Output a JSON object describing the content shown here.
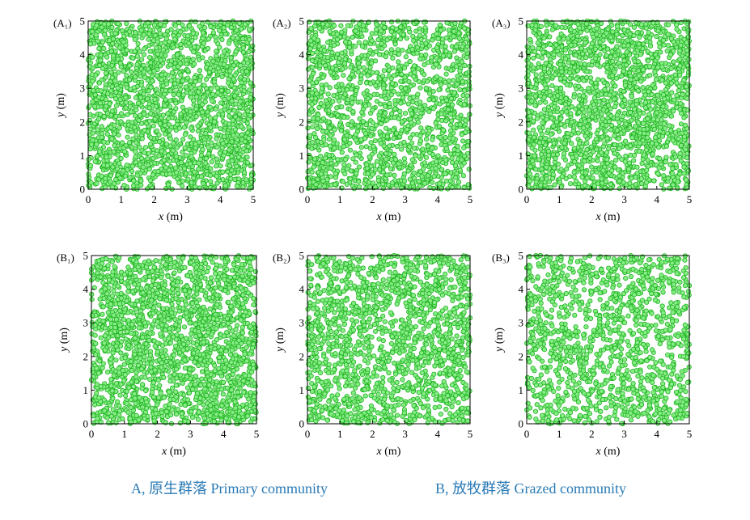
{
  "colors": {
    "point_fill": "#86ec86",
    "point_stroke": "#1fb31f",
    "frame": "#000000",
    "caption": "#2a7ab5"
  },
  "captions": {
    "a": "A, 原生群落 Primary community",
    "b": "B, 放牧群落 Grazed community"
  },
  "chart_data": [
    {
      "type": "scatter",
      "panel": "(A₁)",
      "xlabel_var": "x",
      "xlabel_unit": " (m)",
      "ylabel_var": "y",
      "ylabel_unit": " (m)",
      "xlim": [
        0,
        5
      ],
      "ylim": [
        0,
        5
      ],
      "xticks": [
        0,
        1,
        2,
        3,
        4,
        5
      ],
      "yticks": [
        0,
        1,
        2,
        3,
        4,
        5
      ],
      "grid": false,
      "point_count": 2100,
      "seed": 11,
      "x": [],
      "y": []
    },
    {
      "type": "scatter",
      "panel": "(A₂)",
      "xlabel_var": "x",
      "xlabel_unit": " (m)",
      "ylabel_var": "y",
      "ylabel_unit": " (m)",
      "xlim": [
        0,
        5
      ],
      "ylim": [
        0,
        5
      ],
      "xticks": [
        0,
        1,
        2,
        3,
        4,
        5
      ],
      "yticks": [
        0,
        1,
        2,
        3,
        4,
        5
      ],
      "grid": false,
      "point_count": 1700,
      "seed": 23,
      "x": [],
      "y": []
    },
    {
      "type": "scatter",
      "panel": "(A₃)",
      "xlabel_var": "x",
      "xlabel_unit": " (m)",
      "ylabel_var": "y",
      "ylabel_unit": " (m)",
      "xlim": [
        0,
        5
      ],
      "ylim": [
        0,
        5
      ],
      "xticks": [
        0,
        1,
        2,
        3,
        4,
        5
      ],
      "yticks": [
        0,
        1,
        2,
        3,
        4,
        5
      ],
      "grid": false,
      "point_count": 2000,
      "seed": 37,
      "x": [],
      "y": []
    },
    {
      "type": "scatter",
      "panel": "(B₁)",
      "xlabel_var": "x",
      "xlabel_unit": " (m)",
      "ylabel_var": "y",
      "ylabel_unit": " (m)",
      "xlim": [
        0,
        5
      ],
      "ylim": [
        0,
        5
      ],
      "xticks": [
        0,
        1,
        2,
        3,
        4,
        5
      ],
      "yticks": [
        0,
        1,
        2,
        3,
        4,
        5
      ],
      "grid": false,
      "point_count": 2100,
      "seed": 41,
      "x": [],
      "y": []
    },
    {
      "type": "scatter",
      "panel": "(B₂)",
      "xlabel_var": "x",
      "xlabel_unit": " (m)",
      "ylabel_var": "y",
      "ylabel_unit": " (m)",
      "xlim": [
        0,
        5
      ],
      "ylim": [
        0,
        5
      ],
      "xticks": [
        0,
        1,
        2,
        3,
        4,
        5
      ],
      "yticks": [
        0,
        1,
        2,
        3,
        4,
        5
      ],
      "grid": false,
      "point_count": 1600,
      "seed": 53,
      "x": [],
      "y": []
    },
    {
      "type": "scatter",
      "panel": "(B₃)",
      "xlabel_var": "x",
      "xlabel_unit": " (m)",
      "ylabel_var": "y",
      "ylabel_unit": " (m)",
      "xlim": [
        0,
        5
      ],
      "ylim": [
        0,
        5
      ],
      "xticks": [
        0,
        1,
        2,
        3,
        4,
        5
      ],
      "yticks": [
        0,
        1,
        2,
        3,
        4,
        5
      ],
      "grid": false,
      "point_count": 1300,
      "seed": 67,
      "x": [],
      "y": []
    }
  ]
}
